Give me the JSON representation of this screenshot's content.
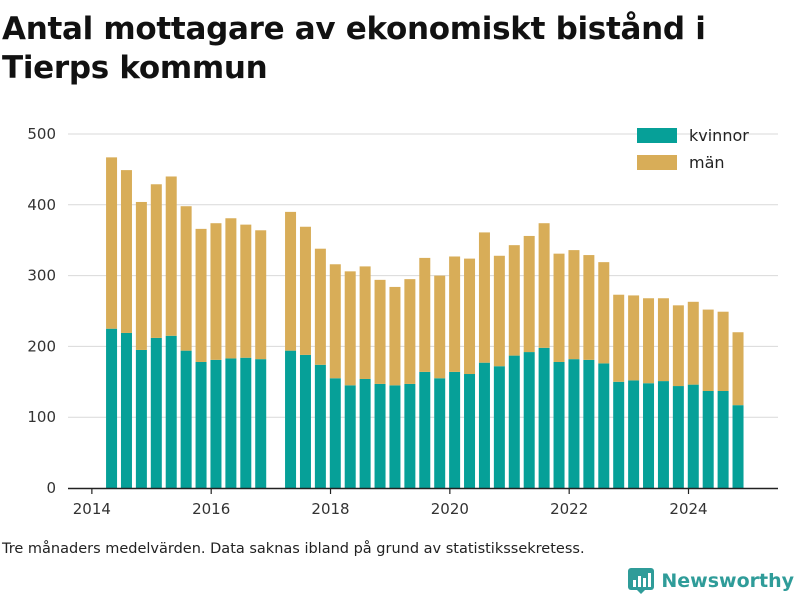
{
  "chart_data": {
    "type": "bar",
    "stacked": true,
    "title": "Antal mottagare av ekonomiskt bistånd i Tierps kommun",
    "xlabel": "",
    "ylabel": "",
    "ylim": [
      0,
      500
    ],
    "yticks": [
      0,
      100,
      200,
      300,
      400,
      500
    ],
    "xlim": [
      2013.6,
      2025.5
    ],
    "xticks": [
      2014,
      2016,
      2018,
      2020,
      2022,
      2024
    ],
    "grid": true,
    "legend_position": "top-right",
    "x": [
      2014.33,
      2014.58,
      2014.83,
      2015.08,
      2015.33,
      2015.58,
      2015.83,
      2016.08,
      2016.33,
      2016.58,
      2016.83,
      2017.33,
      2017.58,
      2017.83,
      2018.08,
      2018.33,
      2018.58,
      2018.83,
      2019.08,
      2019.33,
      2019.58,
      2019.83,
      2020.08,
      2020.33,
      2020.58,
      2020.83,
      2021.08,
      2021.33,
      2021.58,
      2021.83,
      2022.08,
      2022.33,
      2022.58,
      2022.83,
      2023.08,
      2023.33,
      2023.58,
      2023.83,
      2024.08,
      2024.33,
      2024.58,
      2024.83
    ],
    "series": [
      {
        "name": "kvinnor",
        "color": "#06a098",
        "values": [
          225,
          219,
          195,
          212,
          215,
          194,
          178,
          181,
          183,
          184,
          182,
          194,
          188,
          174,
          155,
          145,
          154,
          147,
          145,
          147,
          164,
          155,
          164,
          161,
          177,
          172,
          187,
          192,
          198,
          178,
          182,
          181,
          176,
          150,
          152,
          148,
          151,
          144,
          146,
          137,
          137,
          117
        ]
      },
      {
        "name": "män",
        "color": "#d8ad58",
        "values": [
          242,
          230,
          209,
          217,
          225,
          204,
          188,
          193,
          198,
          188,
          182,
          196,
          181,
          164,
          161,
          161,
          159,
          147,
          139,
          148,
          161,
          145,
          163,
          163,
          184,
          156,
          156,
          164,
          176,
          153,
          154,
          148,
          143,
          123,
          120,
          120,
          117,
          114,
          117,
          115,
          112,
          103
        ]
      }
    ]
  },
  "footnote": "Tre månaders medelvärden. Data saknas ibland på grund av statistikssekretess.",
  "brand": {
    "name": "Newsworthy",
    "icon": "newsworthy-logo-icon",
    "color": "#2f9c99"
  }
}
